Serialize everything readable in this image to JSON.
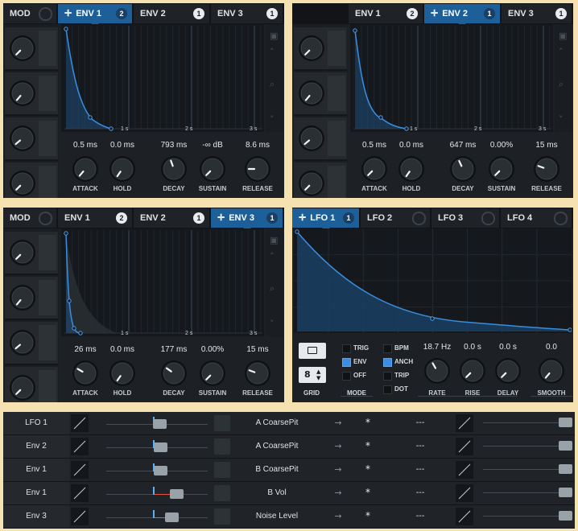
{
  "env_panels": [
    {
      "tabs": [
        {
          "label": "MOD",
          "type": "mod"
        },
        {
          "label": "ENV 1",
          "badge": "2",
          "active": true
        },
        {
          "label": "ENV 2",
          "badge": "1"
        },
        {
          "label": "ENV 3",
          "badge": "1"
        }
      ],
      "time_labels": [
        "1 s",
        "2 s",
        "3 s"
      ],
      "params": [
        {
          "label": "ATTACK",
          "value": "0.5 ms"
        },
        {
          "label": "HOLD",
          "value": "0.0 ms"
        },
        {
          "label": "DECAY",
          "value": "793 ms"
        },
        {
          "label": "SUSTAIN",
          "value": "-∞ dB"
        },
        {
          "label": "RELEASE",
          "value": "8.6 ms"
        }
      ]
    },
    {
      "tabs": [
        {
          "label": "ENV 1",
          "badge": "2"
        },
        {
          "label": "ENV 2",
          "badge": "1",
          "active": true
        },
        {
          "label": "ENV 3",
          "badge": "1"
        }
      ],
      "time_labels": [
        "1 s",
        "2 s",
        "3 s"
      ],
      "params": [
        {
          "label": "ATTACK",
          "value": "0.5 ms"
        },
        {
          "label": "HOLD",
          "value": "0.0 ms"
        },
        {
          "label": "DECAY",
          "value": "647 ms"
        },
        {
          "label": "SUSTAIN",
          "value": "0.00%"
        },
        {
          "label": "RELEASE",
          "value": "15 ms"
        }
      ]
    },
    {
      "tabs": [
        {
          "label": "MOD",
          "type": "mod"
        },
        {
          "label": "ENV 1",
          "badge": "2"
        },
        {
          "label": "ENV 2",
          "badge": "1"
        },
        {
          "label": "ENV 3",
          "badge": "1",
          "active": true
        }
      ],
      "time_labels": [
        "1 s",
        "2 s",
        "3 s"
      ],
      "params": [
        {
          "label": "ATTACK",
          "value": "26 ms"
        },
        {
          "label": "HOLD",
          "value": "0.0 ms"
        },
        {
          "label": "DECAY",
          "value": "177 ms"
        },
        {
          "label": "SUSTAIN",
          "value": "0.00%"
        },
        {
          "label": "RELEASE",
          "value": "15 ms"
        }
      ]
    }
  ],
  "lfo_panel": {
    "tabs": [
      {
        "label": "LFO 1",
        "badge": "1",
        "active": true
      },
      {
        "label": "LFO 2"
      },
      {
        "label": "LFO 3"
      },
      {
        "label": "LFO 4"
      }
    ],
    "grid": {
      "value": "8",
      "label": "GRID"
    },
    "mode": {
      "label": "MODE",
      "options": [
        {
          "label": "TRIG",
          "on": false
        },
        {
          "label": "ENV",
          "on": true
        },
        {
          "label": "OFF",
          "on": false
        }
      ]
    },
    "flags": [
      {
        "label": "BPM",
        "on": false
      },
      {
        "label": "ANCH",
        "on": true
      },
      {
        "label": "TRIP",
        "on": false
      },
      {
        "label": "DOT",
        "on": false
      }
    ],
    "params": [
      {
        "label": "RATE",
        "value": "18.7 Hz"
      },
      {
        "label": "RISE",
        "value": "0.0 s"
      },
      {
        "label": "DELAY",
        "value": "0.0 s"
      },
      {
        "label": "SMOOTH",
        "value": "0.0"
      }
    ]
  },
  "matrix": {
    "rows": [
      {
        "source": "LFO 1",
        "amount": 0.52,
        "destination": "A CoarsePit",
        "aux": "---"
      },
      {
        "source": "Env 2",
        "amount": 0.53,
        "destination": "A CoarsePit",
        "aux": "---"
      },
      {
        "source": "Env 1",
        "amount": 0.53,
        "destination": "B CoarsePit",
        "aux": "---"
      },
      {
        "source": "Env 1",
        "amount": 0.69,
        "destination": "B Vol",
        "aux": "---"
      },
      {
        "source": "Env 3",
        "amount": 0.64,
        "destination": "Noise Level",
        "aux": "---"
      }
    ],
    "arrow_symbol": "→",
    "star_symbol": "*"
  },
  "icons": {
    "move": "move-arrows-icon",
    "lock": "lock-icon",
    "up": "chevron-up-icon",
    "search": "magnifier-icon",
    "down": "chevron-down-icon",
    "folder": "folder-icon",
    "curve": "curve-shape-icon"
  },
  "colors": {
    "accent": "#1d5f98",
    "curve": "#3a8de0",
    "matrix_bipolar": "#e2553f"
  }
}
